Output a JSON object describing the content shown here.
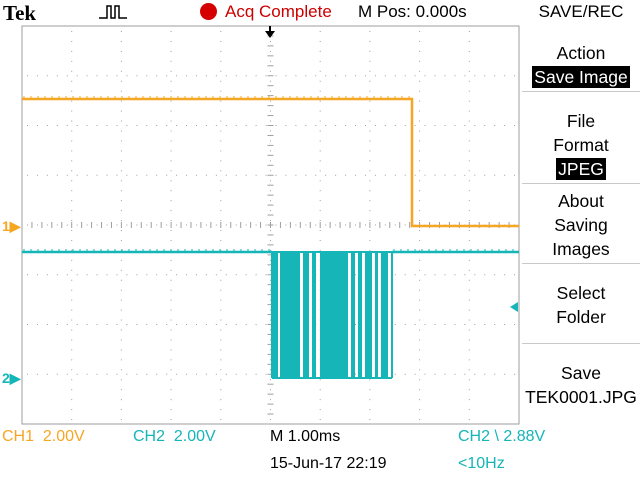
{
  "header": {
    "brand": "Tek",
    "trigger_icon": "pulse-trigger-icon",
    "acq_status": "Acq Complete",
    "mpos": "M Pos: 0.000s",
    "menu_title": "SAVE/REC",
    "acq_dot_color": "#d50000"
  },
  "right_menu": {
    "action": {
      "label": "Action",
      "value": "Save Image"
    },
    "file_format": {
      "label1": "File",
      "label2": "Format",
      "value": "JPEG"
    },
    "about": {
      "line1": "About",
      "line2": "Saving",
      "line3": "Images"
    },
    "select_folder": {
      "line1": "Select",
      "line2": "Folder"
    },
    "save": {
      "line1": "Save",
      "line2": "TEK0001.JPG"
    }
  },
  "markers": {
    "ch1": "1",
    "ch2": "2"
  },
  "bottom": {
    "ch1_label": "CH1",
    "ch1_scale": "2.00V",
    "ch2_label": "CH2",
    "ch2_scale": "2.00V",
    "timebase": "M 1.00ms",
    "trigger": "CH2 \\ 2.88V",
    "datetime": "15-Jun-17 22:19",
    "freq": "<10Hz"
  },
  "colors": {
    "ch1": "#f5a623",
    "ch2": "#15b5b8",
    "grid": "#9e9e9e"
  }
}
